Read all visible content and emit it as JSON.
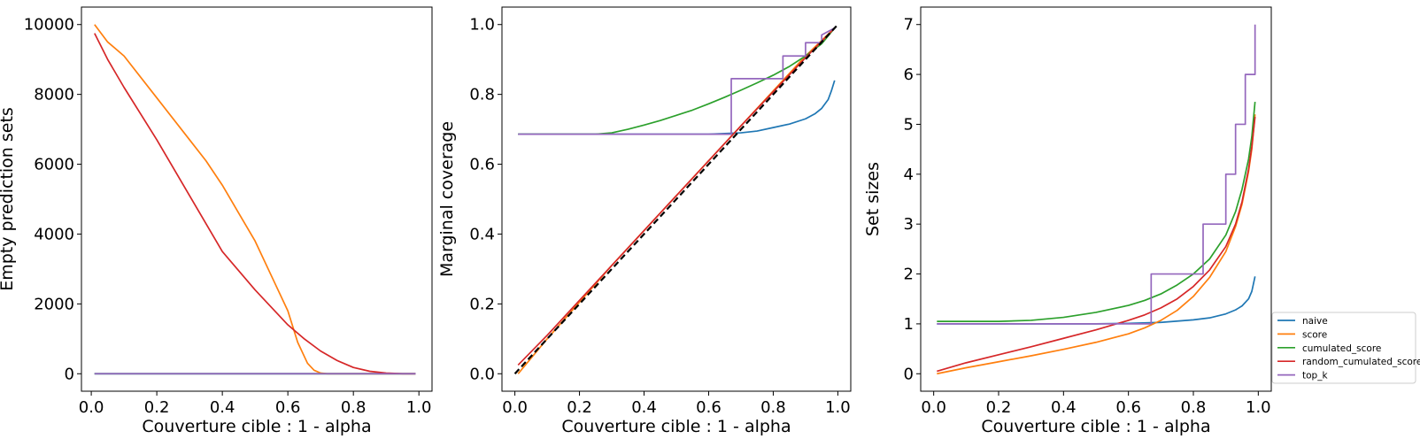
{
  "chart_data": [
    {
      "type": "line",
      "xlabel": "Couverture cible : 1 - alpha",
      "ylabel": "Empty prediction sets",
      "xlim": [
        -0.03,
        1.04
      ],
      "ylim": [
        -500,
        10500
      ],
      "xticks": [
        0.0,
        0.2,
        0.4,
        0.6,
        0.8,
        1.0
      ],
      "xtick_labels": [
        "0.0",
        "0.2",
        "0.4",
        "0.6",
        "0.8",
        "1.0"
      ],
      "yticks": [
        0,
        2000,
        4000,
        6000,
        8000,
        10000
      ],
      "ytick_labels": [
        "0",
        "2000",
        "4000",
        "6000",
        "8000",
        "10000"
      ],
      "grid": false,
      "series": [
        {
          "name": "naive",
          "color": "#1f77b4",
          "x": [
            0.01,
            0.99
          ],
          "y": [
            0,
            0
          ]
        },
        {
          "name": "score",
          "color": "#ff7f0e",
          "x": [
            0.01,
            0.05,
            0.1,
            0.2,
            0.3,
            0.35,
            0.4,
            0.45,
            0.5,
            0.55,
            0.6,
            0.63,
            0.66,
            0.68,
            0.7,
            0.72,
            0.99
          ],
          "y": [
            10000,
            9500,
            9100,
            7900,
            6700,
            6100,
            5400,
            4600,
            3800,
            2800,
            1800,
            900,
            300,
            100,
            20,
            0,
            0
          ]
        },
        {
          "name": "cumulated_score",
          "color": "#2ca02c",
          "x": [
            0.01,
            0.99
          ],
          "y": [
            0,
            0
          ]
        },
        {
          "name": "random_cumulated_score",
          "color": "#d62728",
          "x": [
            0.01,
            0.05,
            0.1,
            0.2,
            0.3,
            0.4,
            0.5,
            0.55,
            0.6,
            0.65,
            0.7,
            0.75,
            0.8,
            0.85,
            0.9,
            0.95,
            0.99
          ],
          "y": [
            9750,
            9000,
            8200,
            6700,
            5100,
            3500,
            2400,
            1900,
            1400,
            1000,
            650,
            380,
            180,
            70,
            20,
            0,
            0
          ]
        },
        {
          "name": "top_k",
          "color": "#9467bd",
          "x": [
            0.01,
            0.99
          ],
          "y": [
            0,
            0
          ]
        }
      ]
    },
    {
      "type": "line",
      "xlabel": "Couverture cible : 1 - alpha",
      "ylabel": "Marginal coverage",
      "xlim": [
        -0.04,
        1.04
      ],
      "ylim": [
        -0.05,
        1.05
      ],
      "xticks": [
        0.0,
        0.2,
        0.4,
        0.6,
        0.8,
        1.0
      ],
      "xtick_labels": [
        "0.0",
        "0.2",
        "0.4",
        "0.6",
        "0.8",
        "1.0"
      ],
      "yticks": [
        0.0,
        0.2,
        0.4,
        0.6,
        0.8,
        1.0
      ],
      "ytick_labels": [
        "0.0",
        "0.2",
        "0.4",
        "0.6",
        "0.8",
        "1.0"
      ],
      "grid": false,
      "series": [
        {
          "name": "naive",
          "color": "#1f77b4",
          "x": [
            0.01,
            0.6,
            0.7,
            0.75,
            0.8,
            0.85,
            0.9,
            0.93,
            0.95,
            0.97,
            0.98,
            0.99
          ],
          "y": [
            0.686,
            0.686,
            0.69,
            0.695,
            0.705,
            0.715,
            0.73,
            0.745,
            0.76,
            0.785,
            0.81,
            0.84
          ]
        },
        {
          "name": "score",
          "color": "#ff7f0e",
          "x": [
            0.01,
            0.1,
            0.3,
            0.5,
            0.7,
            0.9,
            0.99
          ],
          "y": [
            0.0,
            0.1,
            0.31,
            0.51,
            0.71,
            0.91,
            0.99
          ]
        },
        {
          "name": "cumulated_score",
          "color": "#2ca02c",
          "x": [
            0.01,
            0.25,
            0.3,
            0.35,
            0.4,
            0.45,
            0.5,
            0.55,
            0.6,
            0.65,
            0.7,
            0.75,
            0.8,
            0.85,
            0.9,
            0.95,
            0.99
          ],
          "y": [
            0.686,
            0.686,
            0.69,
            0.7,
            0.712,
            0.725,
            0.74,
            0.755,
            0.773,
            0.792,
            0.812,
            0.833,
            0.855,
            0.88,
            0.91,
            0.945,
            0.99
          ]
        },
        {
          "name": "random_cumulated_score",
          "color": "#d62728",
          "x": [
            0.01,
            0.1,
            0.3,
            0.5,
            0.7,
            0.9,
            0.99
          ],
          "y": [
            0.025,
            0.11,
            0.31,
            0.51,
            0.71,
            0.905,
            0.99
          ]
        },
        {
          "name": "top_k",
          "color": "#9467bd",
          "x": [
            0.01,
            0.67,
            0.67,
            0.83,
            0.83,
            0.9,
            0.9,
            0.95,
            0.95,
            0.99
          ],
          "y": [
            0.686,
            0.686,
            0.845,
            0.845,
            0.91,
            0.91,
            0.948,
            0.948,
            0.97,
            0.99
          ]
        },
        {
          "name": "",
          "color": "#000000",
          "dashed": true,
          "x": [
            0.0,
            1.0
          ],
          "y": [
            0.0,
            1.0
          ]
        }
      ]
    },
    {
      "type": "line",
      "xlabel": "Couverture cible : 1 - alpha",
      "ylabel": "Set sizes",
      "xlim": [
        -0.04,
        1.04
      ],
      "ylim": [
        -0.35,
        7.35
      ],
      "xticks": [
        0.0,
        0.2,
        0.4,
        0.6,
        0.8,
        1.0
      ],
      "xtick_labels": [
        "0.0",
        "0.2",
        "0.4",
        "0.6",
        "0.8",
        "1.0"
      ],
      "yticks": [
        0,
        1,
        2,
        3,
        4,
        5,
        6,
        7
      ],
      "ytick_labels": [
        "0",
        "1",
        "2",
        "3",
        "4",
        "5",
        "6",
        "7"
      ],
      "grid": false,
      "legend_placement": "lower-right-outside",
      "series": [
        {
          "name": "naive",
          "color": "#1f77b4",
          "x": [
            0.01,
            0.5,
            0.6,
            0.7,
            0.8,
            0.85,
            0.9,
            0.93,
            0.95,
            0.97,
            0.98,
            0.99
          ],
          "y": [
            1.0,
            1.0,
            1.01,
            1.03,
            1.08,
            1.12,
            1.2,
            1.28,
            1.36,
            1.5,
            1.65,
            1.95
          ]
        },
        {
          "name": "score",
          "color": "#ff7f0e",
          "x": [
            0.01,
            0.1,
            0.2,
            0.3,
            0.4,
            0.5,
            0.6,
            0.65,
            0.7,
            0.75,
            0.8,
            0.85,
            0.9,
            0.93,
            0.95,
            0.97,
            0.98,
            0.99
          ],
          "y": [
            0.0,
            0.12,
            0.24,
            0.36,
            0.49,
            0.63,
            0.8,
            0.92,
            1.07,
            1.27,
            1.55,
            1.93,
            2.45,
            2.95,
            3.4,
            4.05,
            4.5,
            5.2
          ]
        },
        {
          "name": "cumulated_score",
          "color": "#2ca02c",
          "x": [
            0.01,
            0.2,
            0.3,
            0.4,
            0.5,
            0.6,
            0.65,
            0.7,
            0.75,
            0.8,
            0.85,
            0.9,
            0.93,
            0.95,
            0.97,
            0.98,
            0.99
          ],
          "y": [
            1.05,
            1.05,
            1.07,
            1.13,
            1.23,
            1.37,
            1.47,
            1.6,
            1.78,
            2.0,
            2.3,
            2.78,
            3.25,
            3.7,
            4.3,
            4.75,
            5.45
          ]
        },
        {
          "name": "random_cumulated_score",
          "color": "#d62728",
          "x": [
            0.01,
            0.1,
            0.2,
            0.3,
            0.4,
            0.5,
            0.6,
            0.65,
            0.7,
            0.75,
            0.8,
            0.85,
            0.9,
            0.93,
            0.95,
            0.97,
            0.98,
            0.99
          ],
          "y": [
            0.05,
            0.22,
            0.38,
            0.54,
            0.71,
            0.88,
            1.07,
            1.18,
            1.32,
            1.5,
            1.75,
            2.08,
            2.55,
            3.0,
            3.45,
            4.1,
            4.55,
            5.15
          ]
        },
        {
          "name": "top_k",
          "color": "#9467bd",
          "x": [
            0.01,
            0.67,
            0.67,
            0.83,
            0.83,
            0.9,
            0.9,
            0.93,
            0.93,
            0.95,
            0.95,
            0.96,
            0.96,
            0.98,
            0.98,
            0.99,
            0.99
          ],
          "y": [
            1,
            1,
            2,
            2,
            3,
            3,
            4,
            4,
            5,
            5,
            5,
            5,
            6,
            6,
            6,
            6,
            7
          ]
        }
      ]
    }
  ]
}
